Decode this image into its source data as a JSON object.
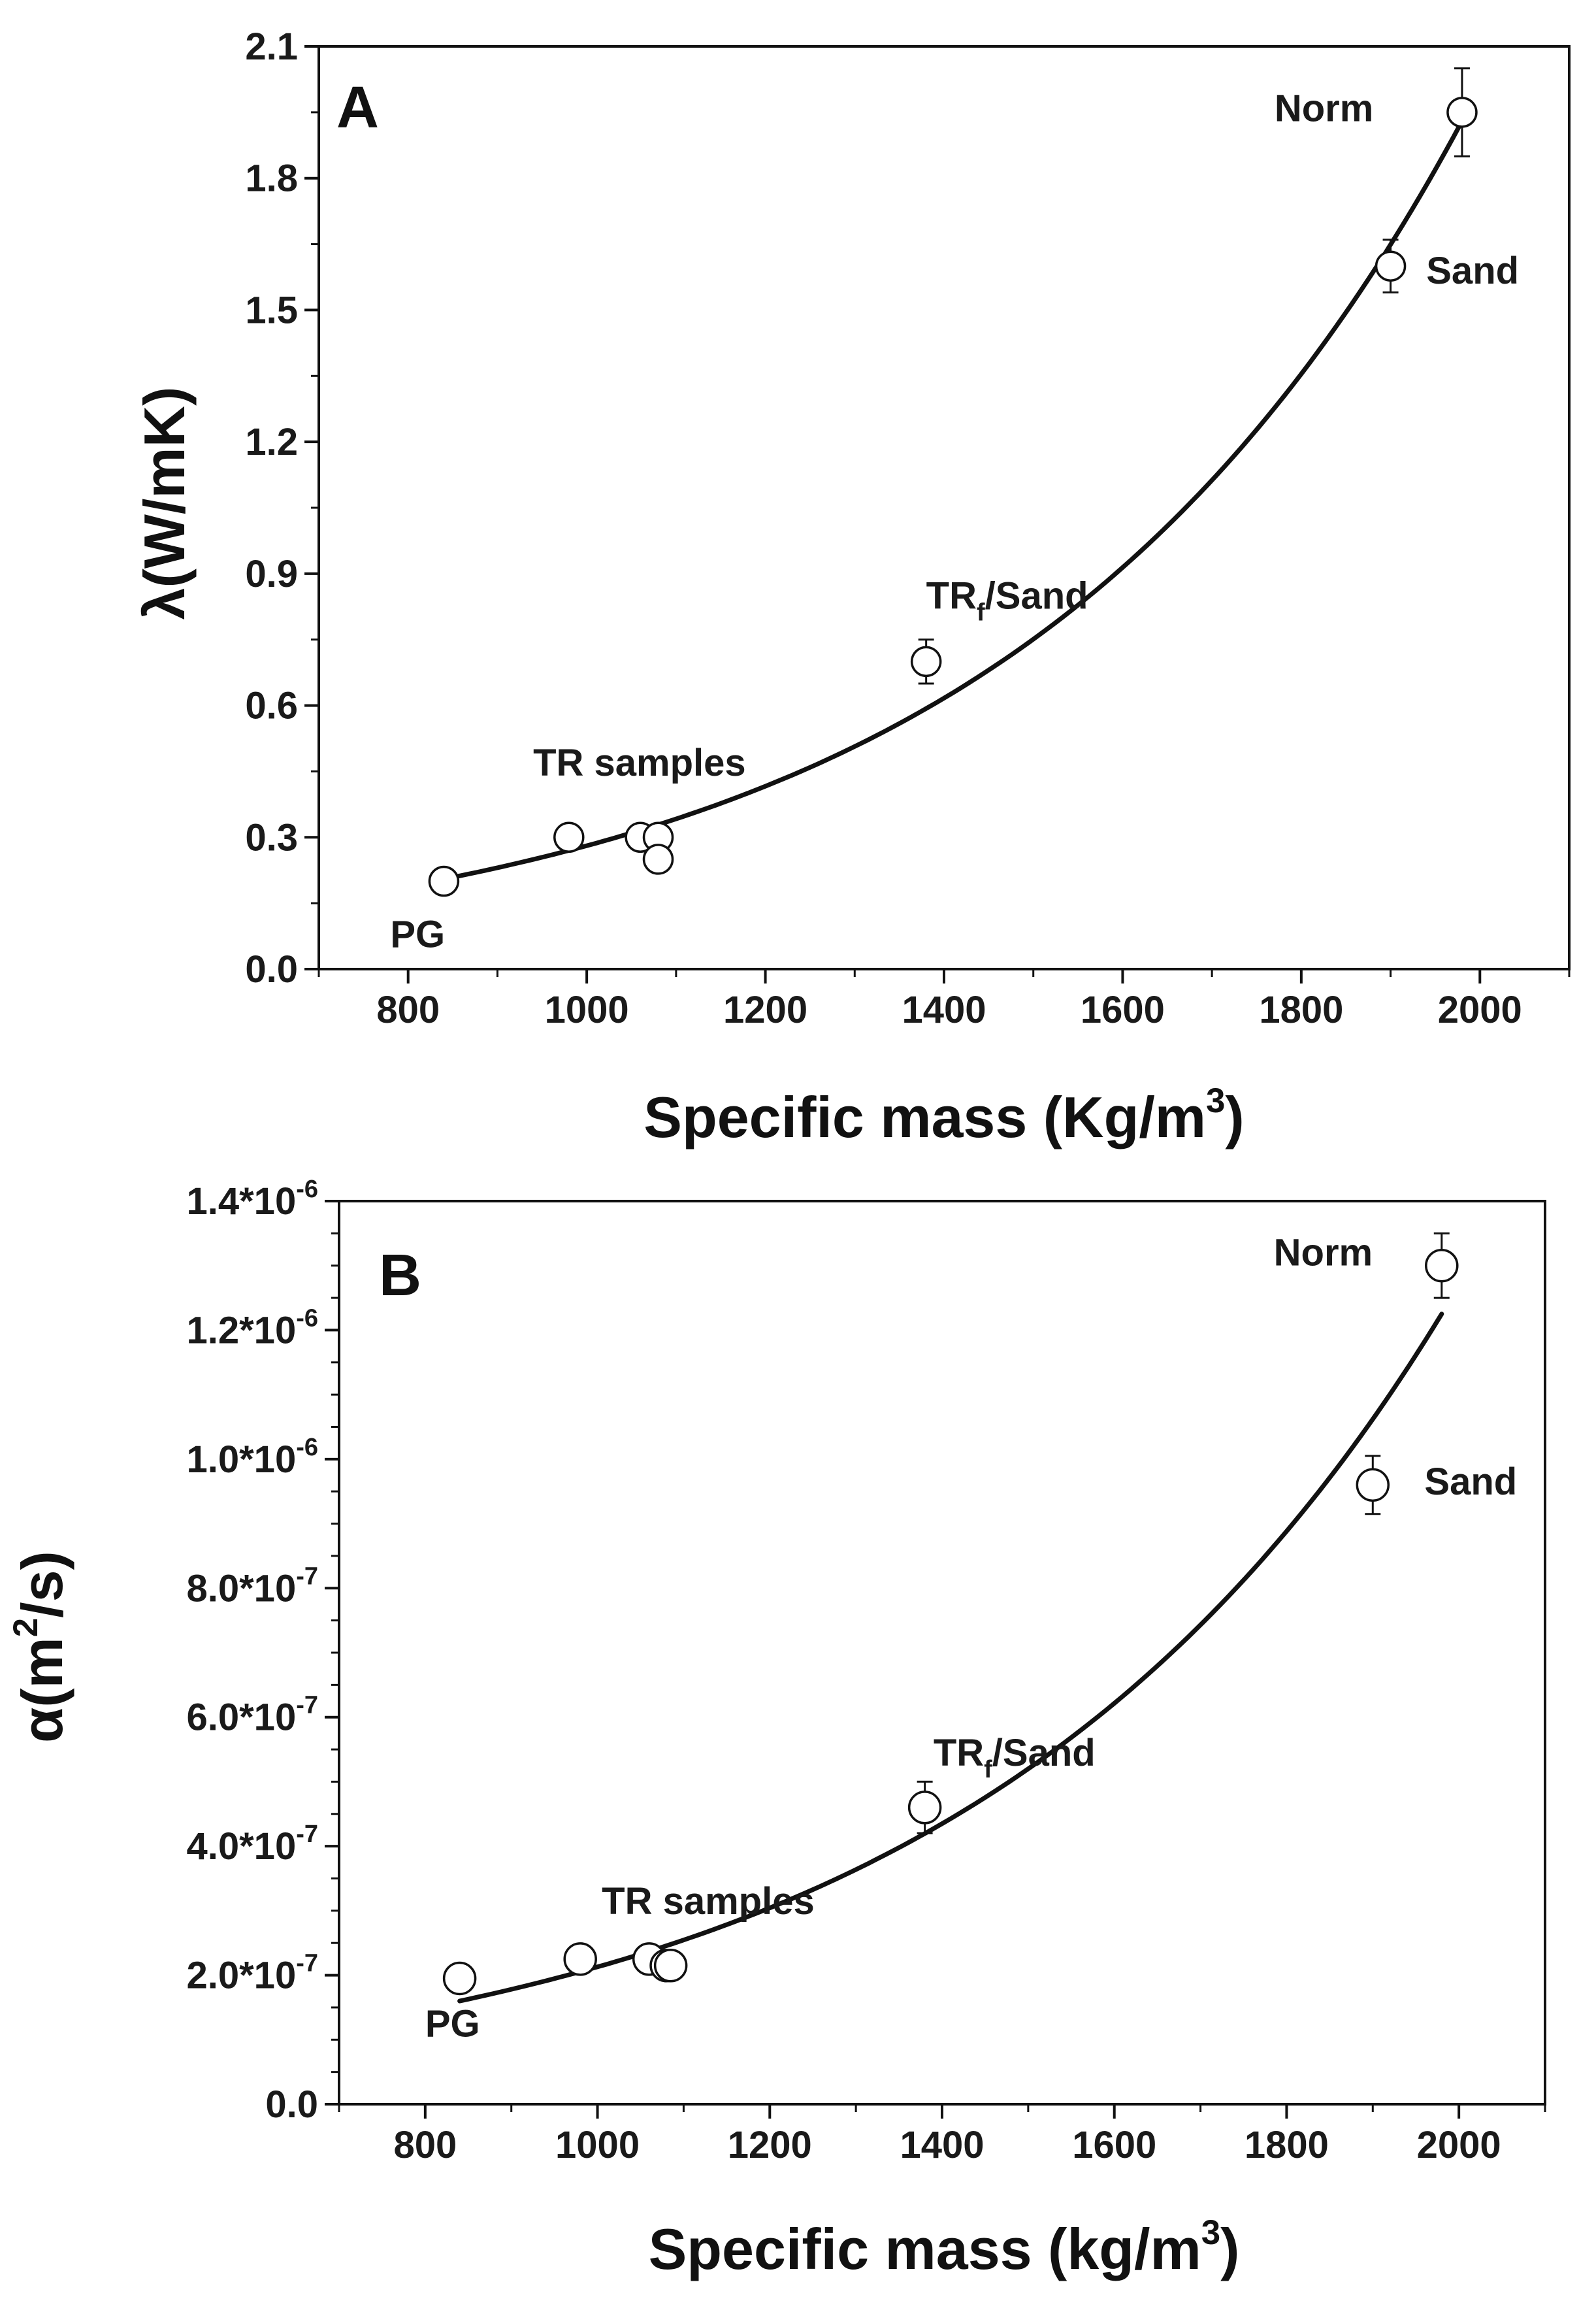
{
  "chart_data": [
    {
      "type": "scatter",
      "panel": "A",
      "xlabel": "Specific mass (Kg/m3)",
      "xlabel_parts": {
        "main": "Specific mass (Kg/m",
        "sup": "3",
        "end": ")"
      },
      "ylabel": "λ(W/mK)",
      "xlim": [
        700,
        2100
      ],
      "ylim": [
        0.0,
        2.1
      ],
      "x_ticks": [
        800,
        1000,
        1200,
        1400,
        1600,
        1800,
        2000
      ],
      "y_ticks": [
        "0.0",
        "0.3",
        "0.6",
        "0.9",
        "1.2",
        "1.5",
        "1.8",
        "2.1"
      ],
      "y_tick_values": [
        0.0,
        0.3,
        0.6,
        0.9,
        1.2,
        1.5,
        1.8,
        2.1
      ],
      "points": [
        {
          "x": 840,
          "y": 0.2,
          "err": 0.02
        },
        {
          "x": 980,
          "y": 0.3,
          "err": 0.02
        },
        {
          "x": 1060,
          "y": 0.3,
          "err": 0.02
        },
        {
          "x": 1080,
          "y": 0.3,
          "err": 0.02
        },
        {
          "x": 1080,
          "y": 0.25,
          "err": 0.02
        },
        {
          "x": 1380,
          "y": 0.7,
          "err": 0.05
        },
        {
          "x": 1900,
          "y": 1.6,
          "err": 0.06
        },
        {
          "x": 1980,
          "y": 1.95,
          "err": 0.1
        }
      ],
      "fit": {
        "type": "exponential",
        "x_range": [
          840,
          1980
        ],
        "y_start": 0.205,
        "y_end": 1.93
      },
      "annotations": [
        {
          "text": "PG",
          "x": 780,
          "y": 0.05
        },
        {
          "text": "TR samples",
          "x": 940,
          "y": 0.44
        },
        {
          "text": "TRf/Sand",
          "main": "TR",
          "sub": "f",
          "rest": "/Sand",
          "x": 1380,
          "y": 0.82
        },
        {
          "text": "Sand",
          "x": 1940,
          "y": 1.56
        },
        {
          "text": "Norm",
          "x": 1770,
          "y": 1.93
        }
      ]
    },
    {
      "type": "scatter",
      "panel": "B",
      "xlabel": "Specific mass (kg/m3)",
      "xlabel_parts": {
        "main": "Specific mass (kg/m",
        "sup": "3",
        "end": ")"
      },
      "ylabel": "α(m2/s)",
      "xlim": [
        700,
        2100
      ],
      "ylim": [
        0.0,
        1.4e-06
      ],
      "x_ticks": [
        800,
        1000,
        1200,
        1400,
        1600,
        1800,
        2000
      ],
      "y_ticks": [
        "0.0",
        "2.0*10-7",
        "4.0*10-7",
        "6.0*10-7",
        "8.0*10-7",
        "1.0*10-6",
        "1.2*10-6",
        "1.4*10-6"
      ],
      "y_tick_parts": [
        {
          "main": "0.0",
          "sup": ""
        },
        {
          "main": "2.0*10",
          "sup": "-7"
        },
        {
          "main": "4.0*10",
          "sup": "-7"
        },
        {
          "main": "6.0*10",
          "sup": "-7"
        },
        {
          "main": "8.0*10",
          "sup": "-7"
        },
        {
          "main": "1.0*10",
          "sup": "-6"
        },
        {
          "main": "1.2*10",
          "sup": "-6"
        },
        {
          "main": "1.4*10",
          "sup": "-6"
        }
      ],
      "y_tick_values": [
        0.0,
        2e-07,
        4e-07,
        6e-07,
        8e-07,
        1e-06,
        1.2e-06,
        1.4e-06
      ],
      "points": [
        {
          "x": 840,
          "y": 1.95e-07,
          "err": 1.5e-08
        },
        {
          "x": 980,
          "y": 2.25e-07,
          "err": 1.5e-08
        },
        {
          "x": 1060,
          "y": 2.25e-07,
          "err": 1.5e-08
        },
        {
          "x": 1080,
          "y": 2.15e-07,
          "err": 1.5e-08
        },
        {
          "x": 1085,
          "y": 2.15e-07,
          "err": 2e-08
        },
        {
          "x": 1380,
          "y": 4.6e-07,
          "err": 4e-08
        },
        {
          "x": 1900,
          "y": 9.6e-07,
          "err": 4.5e-08
        },
        {
          "x": 1980,
          "y": 1.3e-06,
          "err": 5e-08
        }
      ],
      "fit": {
        "type": "exponential",
        "x_range": [
          840,
          1980
        ],
        "y_start": 1.6e-07,
        "y_end": 1.225e-06
      },
      "annotations": [
        {
          "text": "PG",
          "x": 800,
          "y": 1.05e-07
        },
        {
          "text": "TR samples",
          "x": 1005,
          "y": 2.95e-07
        },
        {
          "text": "TRf/Sand",
          "main": "TR",
          "sub": "f",
          "rest": "/Sand",
          "x": 1390,
          "y": 5.25e-07
        },
        {
          "text": "Sand",
          "x": 1960,
          "y": 9.45e-07
        },
        {
          "text": "Norm",
          "x": 1785,
          "y": 1.3e-06
        }
      ]
    }
  ]
}
